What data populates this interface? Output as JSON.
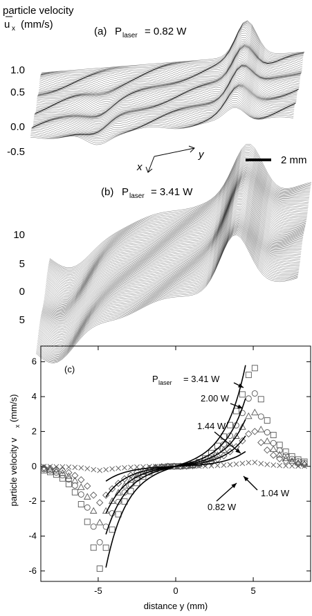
{
  "figure": {
    "panel_a": {
      "label": "(a)",
      "power_prefix": "P",
      "power_sub": "laser",
      "power_value": "= 0.82 W",
      "zlabel_line1": "particle velocity",
      "zlabel_symbol": "u",
      "zlabel_sub": "x",
      "zlabel_unit": "(mm/s)",
      "ticks": [
        "1.0",
        "0.5",
        "0.0",
        "-0.5"
      ],
      "axis_x": "x",
      "axis_y": "y",
      "scalebar_label": "2 mm"
    },
    "panel_b": {
      "label": "(b)",
      "power_prefix": "P",
      "power_sub": "laser",
      "power_value": "= 3.41 W",
      "ticks": [
        "10",
        "5",
        "0",
        "5"
      ]
    }
  },
  "chart_data": {
    "type": "scatter",
    "panel_label": "(c)",
    "xlabel": "distance y (mm)",
    "ylabel": "particle velocity v",
    "ylabel_sub": "x",
    "ylabel_unit": "(mm/s)",
    "xlim": [
      -8.7,
      8.7
    ],
    "ylim": [
      -6.6,
      6.9
    ],
    "xticks": [
      -5,
      0,
      5
    ],
    "yticks": [
      -6,
      -4,
      -2,
      0,
      2,
      4,
      6
    ],
    "grid": false,
    "legend_prefix": "P",
    "legend_sub": "laser",
    "series": [
      {
        "name": "= 3.41 W",
        "marker": "square",
        "peak": 6.2,
        "fit_peak": 5.8
      },
      {
        "name": "2.00 W",
        "marker": "circle",
        "peak": 4.6,
        "fit_peak": 3.9
      },
      {
        "name": "1.44 W",
        "marker": "triangle",
        "peak": 3.4,
        "fit_peak": 2.7
      },
      {
        "name": "1.04 W",
        "marker": "diamond",
        "peak": 2.2,
        "fit_peak": 1.75
      },
      {
        "name": "0.82 W",
        "marker": "x",
        "peak": 0.25,
        "fit_peak": 0.85
      }
    ]
  }
}
